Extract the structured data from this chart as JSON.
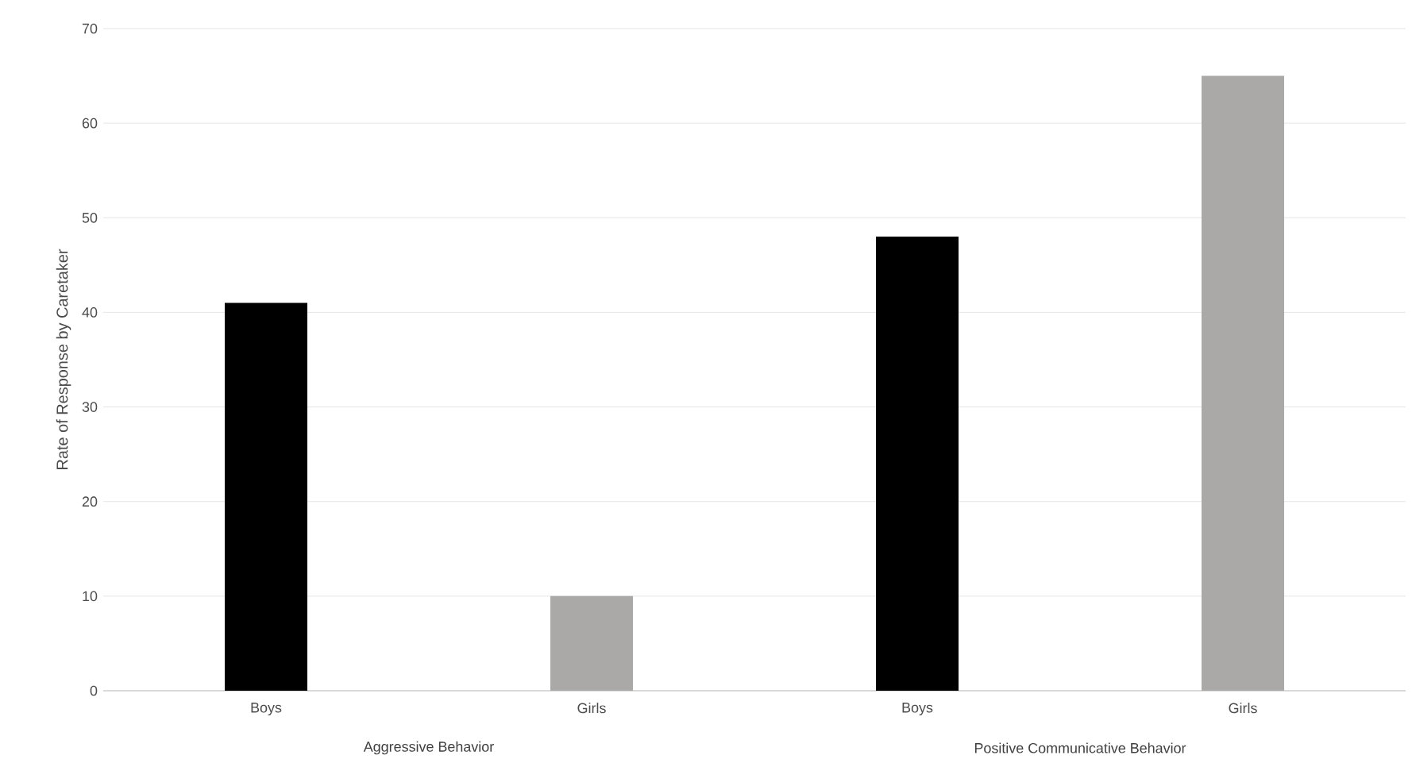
{
  "chart_data": {
    "type": "bar",
    "ylabel": "Rate of Response by Caretaker",
    "categories": [
      "Boys",
      "Girls",
      "Boys",
      "Girls"
    ],
    "values": [
      41,
      10,
      48,
      65
    ],
    "colors": [
      "#000000",
      "#aba8a8",
      "#000000",
      "#aba8a8"
    ],
    "ylim": [
      0,
      70
    ],
    "yticks": [
      0,
      10,
      20,
      30,
      40,
      50,
      60,
      70
    ],
    "grid": "y",
    "annotations": [
      "Aggressive Behavior",
      "Positive Communicative Behavior"
    ]
  }
}
